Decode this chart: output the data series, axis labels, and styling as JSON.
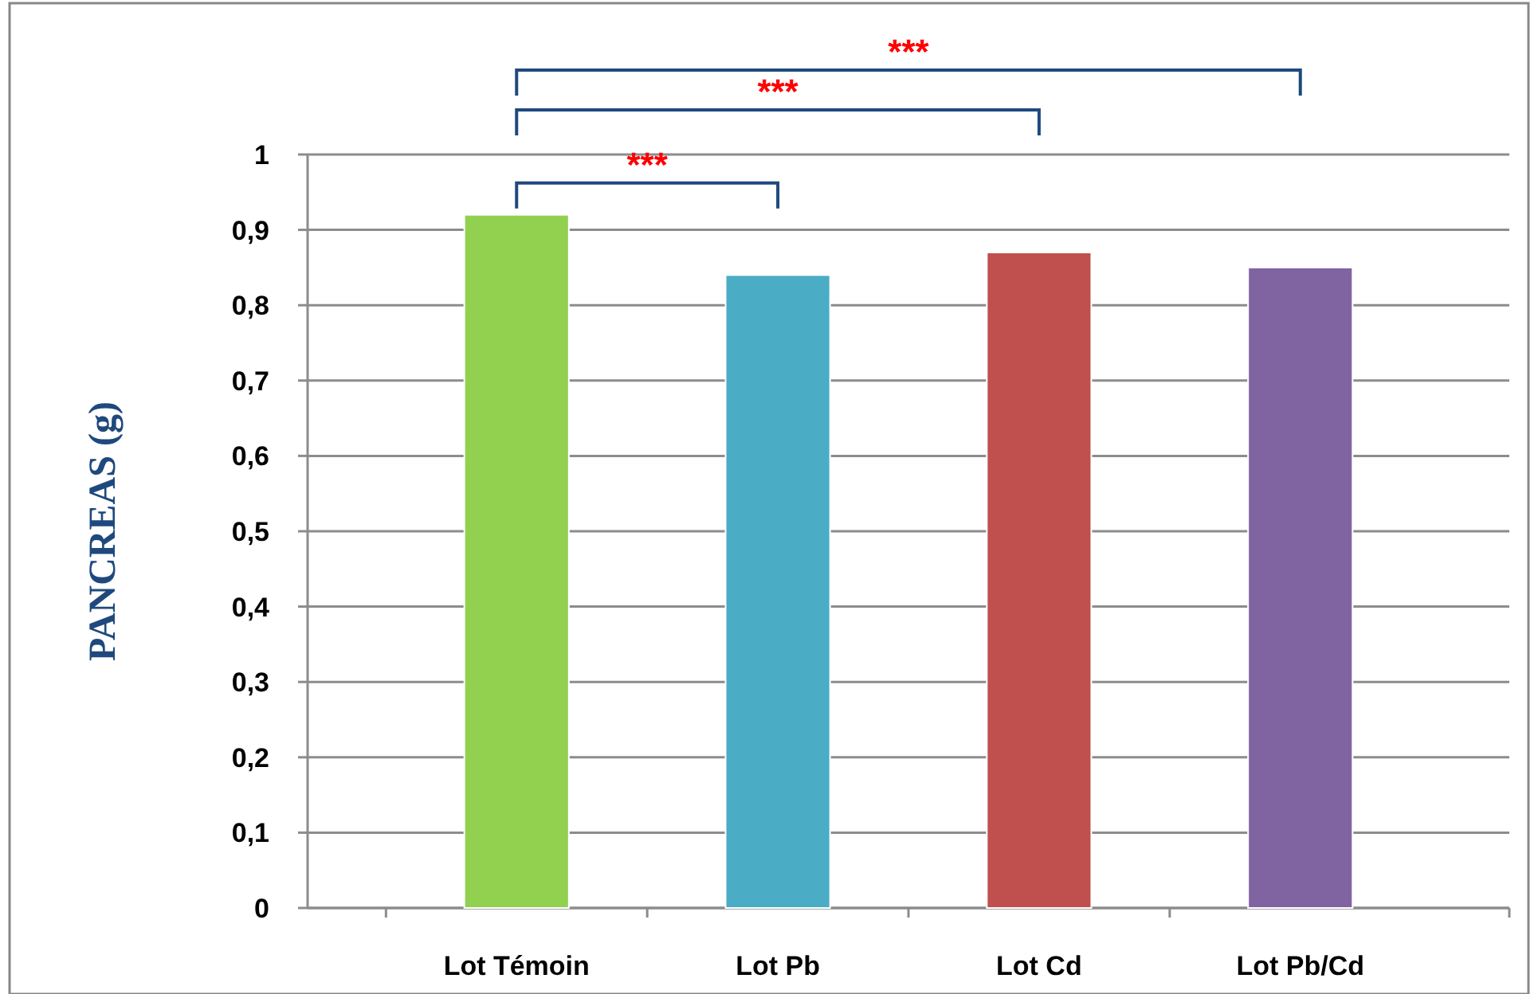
{
  "chart_data": {
    "type": "bar",
    "ylabel": "PANCREAS (g)",
    "categories": [
      "Lot Témoin",
      "Lot Pb",
      "Lot Cd",
      "Lot Pb/Cd"
    ],
    "values": [
      0.92,
      0.84,
      0.87,
      0.85
    ],
    "colors": [
      "#92d050",
      "#4bacc6",
      "#c0504d",
      "#8064a2"
    ],
    "ylim": [
      0,
      1
    ],
    "yticks": [
      0,
      {
        "value": 0.1,
        "label": "0,1"
      },
      {
        "value": 0.2,
        "label": "0,2"
      },
      {
        "value": 0.3,
        "label": "0,3"
      },
      {
        "value": 0.4,
        "label": "0,4"
      },
      {
        "value": 0.5,
        "label": "0,5"
      },
      {
        "value": 0.6,
        "label": "0,6"
      },
      {
        "value": 0.7,
        "label": "0,7"
      },
      {
        "value": 0.8,
        "label": "0,8"
      },
      {
        "value": 0.9,
        "label": "0,9"
      },
      1
    ],
    "grid": "y",
    "annotations": [
      "***",
      "***",
      "***"
    ]
  }
}
